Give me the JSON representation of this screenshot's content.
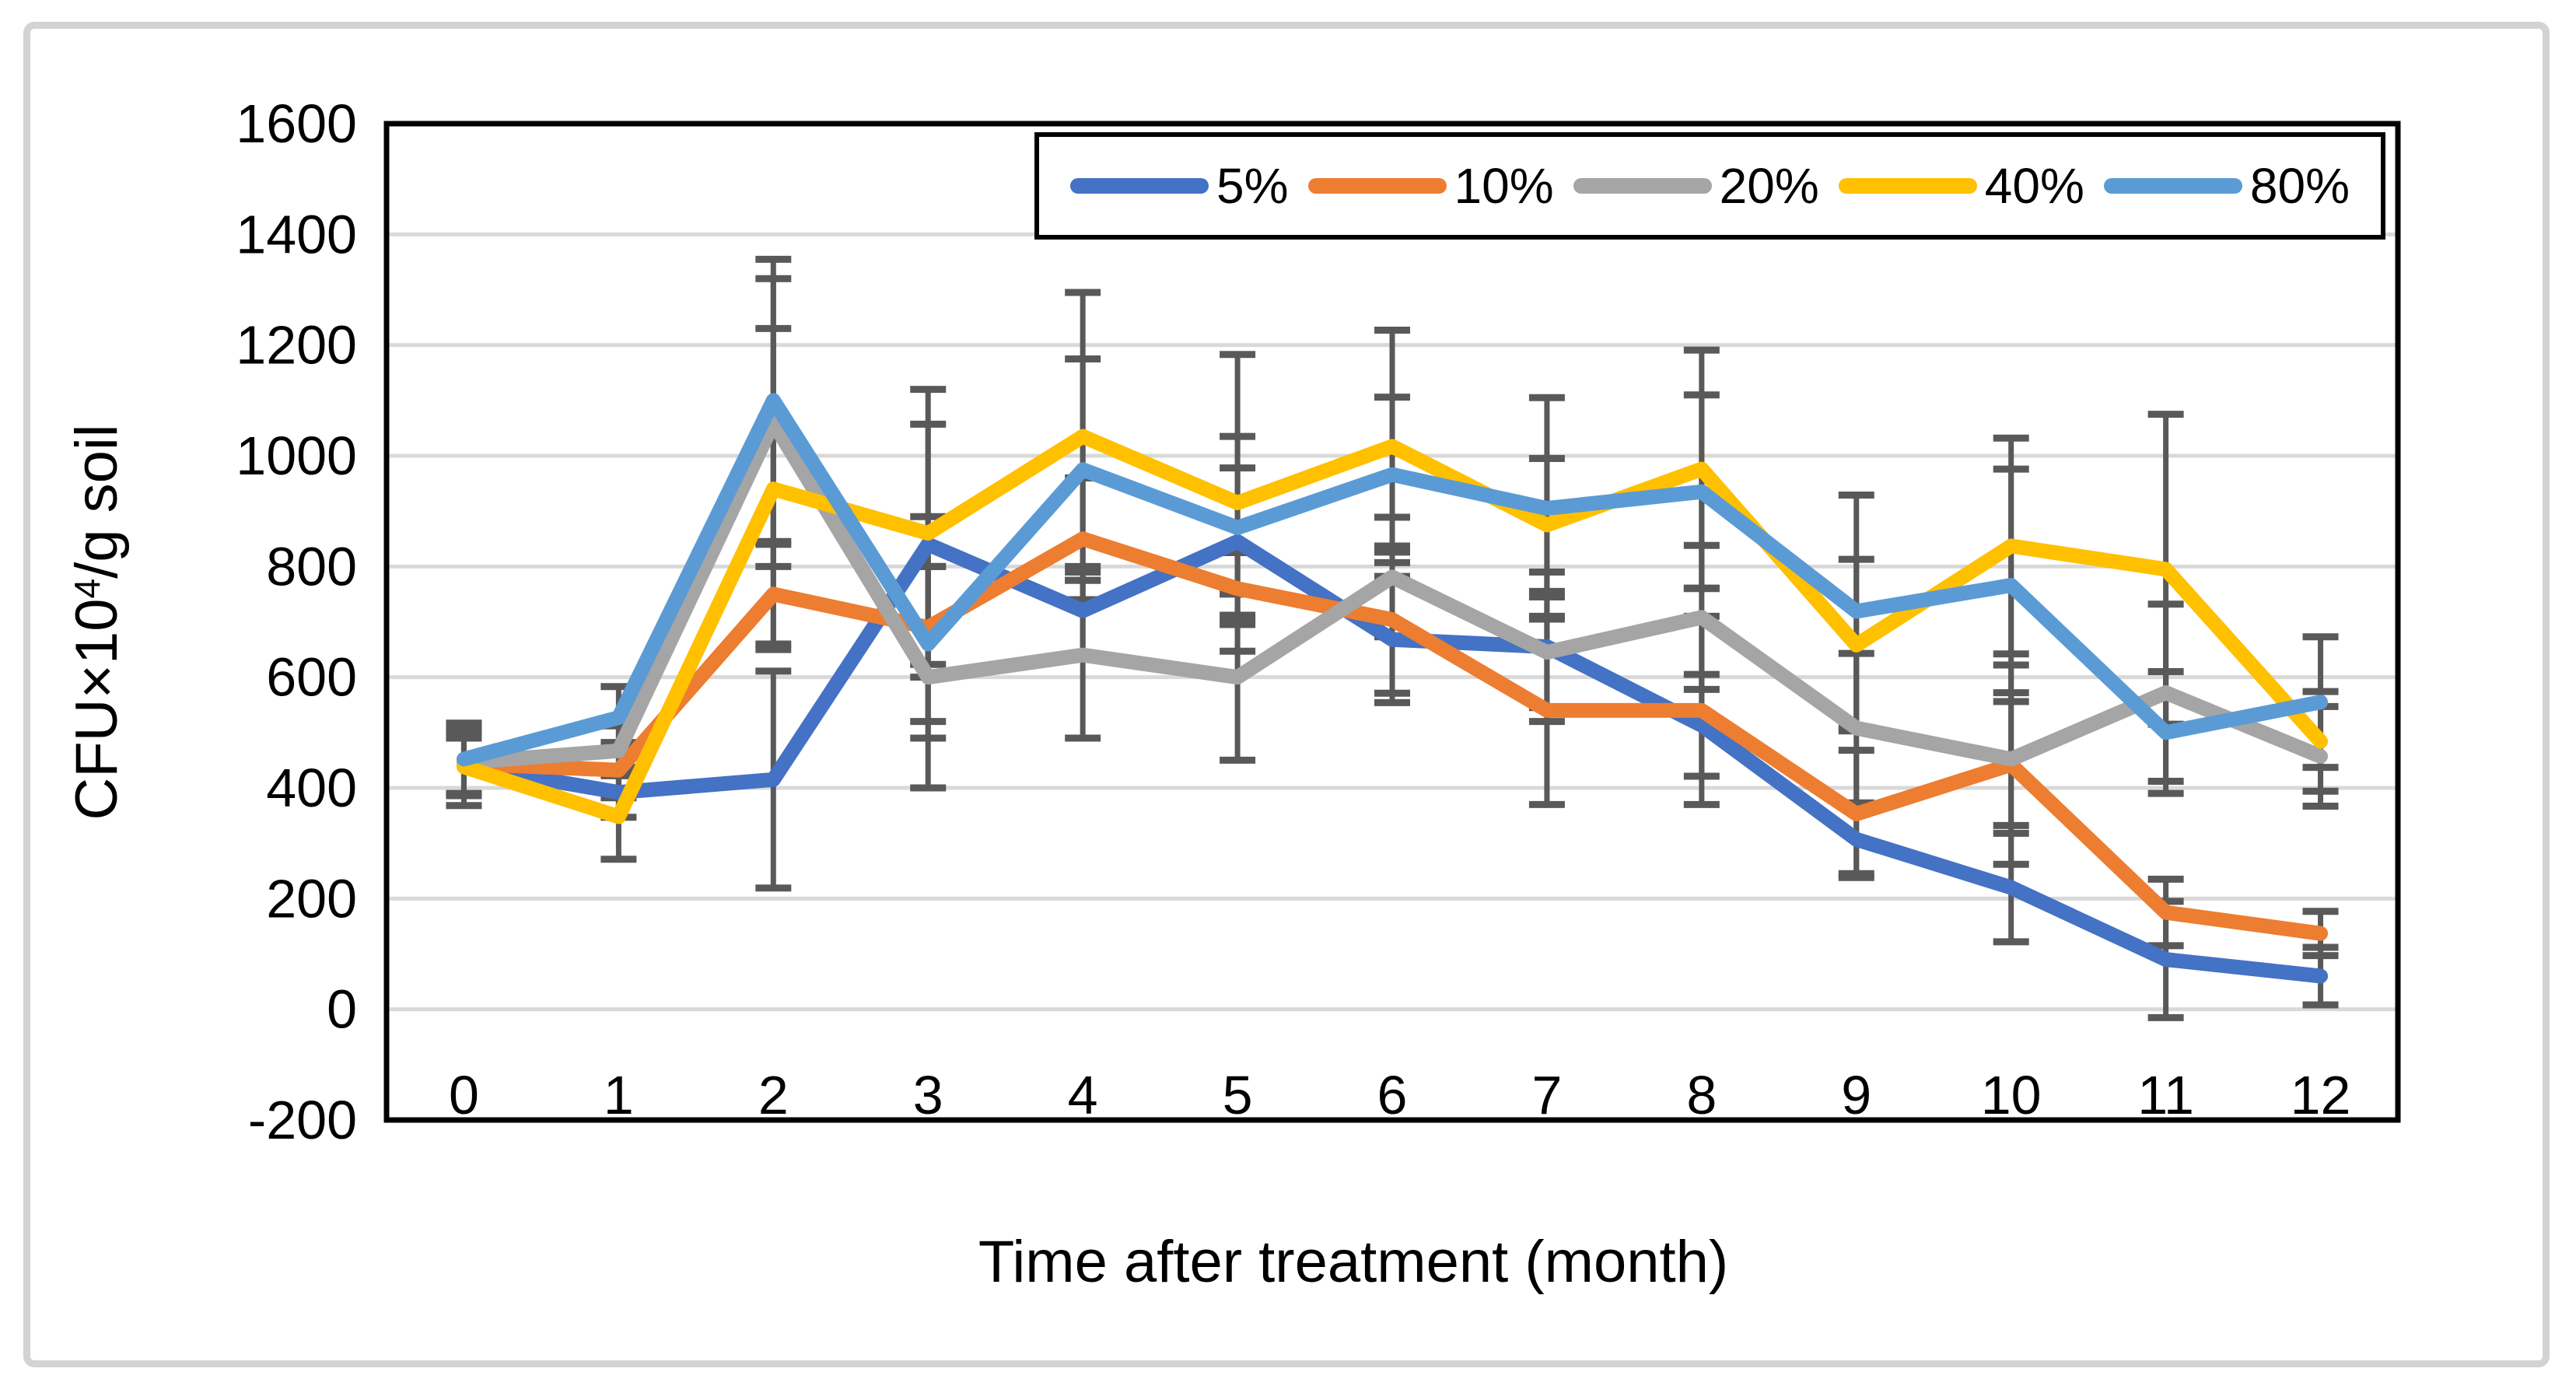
{
  "figure": {
    "outer_border_color": "#d3d3d3",
    "background_color": "#ffffff",
    "plot_border_color": "#000000"
  },
  "chart_data": {
    "type": "line",
    "title": "",
    "xlabel": "Time after treatment (month)",
    "ylabel": "CFU×10⁴/g soil",
    "ylabel_parts": {
      "prefix": "CFU×10",
      "superscript": "4",
      "suffix": "/g soil"
    },
    "categories": [
      "0",
      "1",
      "2",
      "3",
      "4",
      "5",
      "6",
      "7",
      "8",
      "9",
      "10",
      "11",
      "12"
    ],
    "ylim": [
      -200,
      1600
    ],
    "ytick_step": 200,
    "ytick_labels": [
      "1600",
      "1400",
      "1200",
      "1000",
      "800",
      "600",
      "400",
      "200",
      "0",
      "-200"
    ],
    "grid": "horizontal",
    "gridline_color": "#d9d9d9",
    "error_bar_color": "#595959",
    "legend_position": "top-right-inside",
    "series": [
      {
        "name": "5%",
        "color": "#4472C4",
        "values": [
          440,
          392,
          415,
          840,
          720,
          845,
          668,
          655,
          513,
          307,
          220,
          90,
          60
        ],
        "errors": [
          50,
          45,
          196,
          217,
          80,
          133,
          114,
          135,
          92,
          62,
          98,
          105,
          52
        ]
      },
      {
        "name": "10%",
        "color": "#ED7D31",
        "values": [
          444,
          432,
          750,
          690,
          850,
          760,
          704,
          540,
          540,
          353,
          442,
          175,
          137
        ],
        "errors": [
          55,
          50,
          90,
          200,
          110,
          65,
          133,
          170,
          170,
          115,
          180,
          60,
          40
        ]
      },
      {
        "name": "20%",
        "color": "#A5A5A5",
        "values": [
          446,
          467,
          1060,
          600,
          640,
          600,
          781,
          645,
          708,
          508,
          452,
          572,
          457
        ],
        "errors": [
          60,
          45,
          260,
          200,
          150,
          150,
          108,
          100,
          130,
          135,
          120,
          160,
          90
        ]
      },
      {
        "name": "40%",
        "color": "#FFC000",
        "values": [
          438,
          348,
          940,
          860,
          1035,
          915,
          1017,
          875,
          976,
          658,
          837,
          795,
          484
        ],
        "errors": [
          70,
          77,
          290,
          260,
          260,
          268,
          210,
          120,
          215,
          155,
          195,
          280,
          90
        ]
      },
      {
        "name": "80%",
        "color": "#5B9BD5",
        "values": [
          452,
          527,
          1100,
          660,
          975,
          870,
          966,
          905,
          935,
          719,
          766,
          500,
          555
        ],
        "errors": [
          65,
          56,
          255,
          140,
          200,
          165,
          140,
          200,
          175,
          210,
          210,
          110,
          118
        ]
      }
    ]
  }
}
